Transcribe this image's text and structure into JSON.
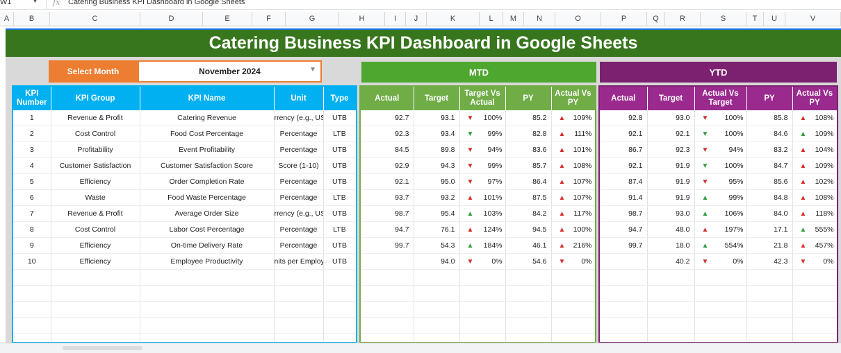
{
  "formula_bar": {
    "cell_ref": "W1",
    "formula": "Catering Business KPI Dashboard in Google Sheets"
  },
  "columns": [
    "A",
    "B",
    "C",
    "D",
    "E",
    "F",
    "G",
    "H",
    "I",
    "J",
    "K",
    "L",
    "M",
    "N",
    "O",
    "P",
    "Q",
    "R",
    "S",
    "T",
    "U",
    "V"
  ],
  "title": "Catering Business KPI Dashboard in Google Sheets",
  "select_month": {
    "label": "Select Month",
    "value": "November 2024"
  },
  "sections": {
    "mtd": "MTD",
    "ytd": "YTD"
  },
  "colors": {
    "banner": "#38761d",
    "orange": "#ed7d31",
    "blue": "#00b0f0",
    "green": "#4ea72e",
    "green_hdr": "#70ad47",
    "purple": "#7b2170",
    "purple_hdr": "#9b2a8e",
    "red": "#d32f2f",
    "up_green": "#2e9e3e"
  },
  "kpi_headers": [
    "KPI Number",
    "KPI Group",
    "KPI Name",
    "Unit",
    "Type"
  ],
  "mtd_headers": [
    "Actual",
    "Target",
    "Target Vs Actual",
    "PY",
    "Actual Vs PY"
  ],
  "ytd_headers": [
    "Actual",
    "Target",
    "Actual Vs Target",
    "PY",
    "Actual Vs PY"
  ],
  "rows": [
    {
      "num": "1",
      "group": "Revenue & Profit",
      "name": "Catering Revenue",
      "unit": "rrency (e.g., US",
      "type": "UTB",
      "mtd": {
        "actual": "92.7",
        "target": "93.1",
        "tva_icon": "down-red",
        "tva": "100%",
        "py": "85.2",
        "avp_icon": "up-red",
        "avp": "109%"
      },
      "ytd": {
        "actual": "92.8",
        "target": "93.0",
        "avt_icon": "down-red",
        "avt": "100%",
        "py": "85.8",
        "avp_icon": "up-red",
        "avp": "108%"
      }
    },
    {
      "num": "2",
      "group": "Cost Control",
      "name": "Food Cost Percentage",
      "unit": "Percentage",
      "type": "LTB",
      "mtd": {
        "actual": "92.3",
        "target": "93.4",
        "tva_icon": "down-green",
        "tva": "99%",
        "py": "82.8",
        "avp_icon": "up-red",
        "avp": "111%"
      },
      "ytd": {
        "actual": "92.1",
        "target": "92.1",
        "avt_icon": "down-green",
        "avt": "100%",
        "py": "84.6",
        "avp_icon": "up-green",
        "avp": "109%"
      }
    },
    {
      "num": "3",
      "group": "Profitability",
      "name": "Event Profitability",
      "unit": "Percentage",
      "type": "UTB",
      "mtd": {
        "actual": "84.5",
        "target": "89.8",
        "tva_icon": "down-red",
        "tva": "94%",
        "py": "83.6",
        "avp_icon": "up-red",
        "avp": "101%"
      },
      "ytd": {
        "actual": "86.7",
        "target": "92.3",
        "avt_icon": "down-red",
        "avt": "94%",
        "py": "83.2",
        "avp_icon": "up-red",
        "avp": "104%"
      }
    },
    {
      "num": "4",
      "group": "Customer Satisfaction",
      "name": "Customer Satisfaction Score",
      "unit": "Score (1-10)",
      "type": "UTB",
      "mtd": {
        "actual": "92.9",
        "target": "94.3",
        "tva_icon": "down-red",
        "tva": "99%",
        "py": "85.7",
        "avp_icon": "up-red",
        "avp": "108%"
      },
      "ytd": {
        "actual": "92.1",
        "target": "91.9",
        "avt_icon": "down-green",
        "avt": "100%",
        "py": "84.7",
        "avp_icon": "up-red",
        "avp": "109%"
      }
    },
    {
      "num": "5",
      "group": "Efficiency",
      "name": "Order Completion Rate",
      "unit": "Percentage",
      "type": "UTB",
      "mtd": {
        "actual": "92.1",
        "target": "95.0",
        "tva_icon": "down-red",
        "tva": "97%",
        "py": "86.4",
        "avp_icon": "up-red",
        "avp": "107%"
      },
      "ytd": {
        "actual": "87.4",
        "target": "91.9",
        "avt_icon": "down-red",
        "avt": "95%",
        "py": "85.6",
        "avp_icon": "up-red",
        "avp": "102%"
      }
    },
    {
      "num": "6",
      "group": "Waste",
      "name": "Food Waste Percentage",
      "unit": "Percentage",
      "type": "LTB",
      "mtd": {
        "actual": "93.7",
        "target": "93.2",
        "tva_icon": "up-red",
        "tva": "101%",
        "py": "87.5",
        "avp_icon": "up-red",
        "avp": "107%"
      },
      "ytd": {
        "actual": "91.4",
        "target": "91.9",
        "avt_icon": "up-green",
        "avt": "99%",
        "py": "84.8",
        "avp_icon": "up-red",
        "avp": "108%"
      }
    },
    {
      "num": "7",
      "group": "Revenue & Profit",
      "name": "Average Order Size",
      "unit": "rrency (e.g., US",
      "type": "UTB",
      "mtd": {
        "actual": "98.7",
        "target": "95.4",
        "tva_icon": "up-green",
        "tva": "103%",
        "py": "84.2",
        "avp_icon": "up-red",
        "avp": "117%"
      },
      "ytd": {
        "actual": "98.7",
        "target": "93.0",
        "avt_icon": "up-green",
        "avt": "106%",
        "py": "84.0",
        "avp_icon": "up-red",
        "avp": "118%"
      }
    },
    {
      "num": "8",
      "group": "Cost Control",
      "name": "Labor Cost Percentage",
      "unit": "Percentage",
      "type": "LTB",
      "mtd": {
        "actual": "94.7",
        "target": "76.1",
        "tva_icon": "up-red",
        "tva": "124%",
        "py": "94.5",
        "avp_icon": "up-red",
        "avp": "100%"
      },
      "ytd": {
        "actual": "94.7",
        "target": "48.0",
        "avt_icon": "up-red",
        "avt": "197%",
        "py": "17.1",
        "avp_icon": "up-green",
        "avp": "555%"
      }
    },
    {
      "num": "9",
      "group": "Efficiency",
      "name": "On-time Delivery Rate",
      "unit": "Percentage",
      "type": "UTB",
      "mtd": {
        "actual": "99.7",
        "target": "54.3",
        "tva_icon": "up-green",
        "tva": "184%",
        "py": "46.1",
        "avp_icon": "up-red",
        "avp": "216%"
      },
      "ytd": {
        "actual": "99.7",
        "target": "18.0",
        "avt_icon": "up-green",
        "avt": "554%",
        "py": "21.8",
        "avp_icon": "up-red",
        "avp": "457%"
      }
    },
    {
      "num": "10",
      "group": "Efficiency",
      "name": "Employee Productivity",
      "unit": "nits per Employe",
      "type": "UTB",
      "mtd": {
        "actual": "",
        "target": "94.0",
        "tva_icon": "down-red",
        "tva": "0%",
        "py": "54.6",
        "avp_icon": "down-red",
        "avp": "0%"
      },
      "ytd": {
        "actual": "",
        "target": "40.2",
        "avt_icon": "down-red",
        "avt": "0%",
        "py": "42.3",
        "avp_icon": "down-red",
        "avp": "0%"
      }
    }
  ]
}
